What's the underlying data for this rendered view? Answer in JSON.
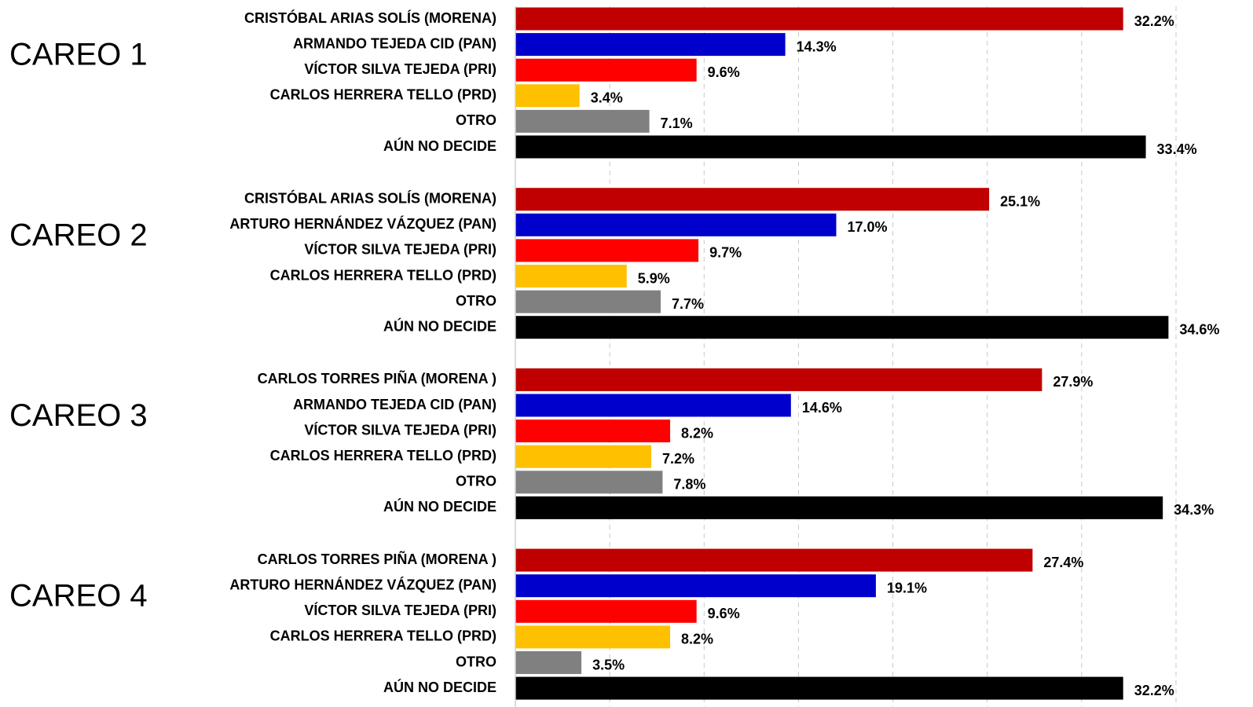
{
  "chart_data": {
    "type": "bar",
    "colors": [
      "#c00000",
      "#0000cc",
      "#ff0000",
      "#ffc000",
      "#808080",
      "#000000"
    ],
    "xlim": [
      0,
      35
    ],
    "xticks": [
      5,
      10,
      15,
      20,
      25,
      30,
      35
    ],
    "grid": true,
    "groups": [
      {
        "name": "CAREO 1",
        "categories": [
          "CRISTÓBAL ARIAS SOLÍS (MORENA)",
          "ARMANDO TEJEDA CID (PAN)",
          "VÍCTOR SILVA TEJEDA (PRI)",
          "CARLOS HERRERA TELLO (PRD)",
          "OTRO",
          "AÚN NO DECIDE"
        ],
        "values": [
          32.2,
          14.3,
          9.6,
          3.4,
          7.1,
          33.4
        ],
        "value_labels": [
          "32.2%",
          "14.3%",
          "9.6%",
          "3.4%",
          "7.1%",
          "33.4%"
        ]
      },
      {
        "name": "CAREO 2",
        "categories": [
          "CRISTÓBAL ARIAS SOLÍS (MORENA)",
          "ARTURO HERNÁNDEZ VÁZQUEZ (PAN)",
          "VÍCTOR SILVA TEJEDA (PRI)",
          "CARLOS HERRERA TELLO (PRD)",
          "OTRO",
          "AÚN NO DECIDE"
        ],
        "values": [
          25.1,
          17.0,
          9.7,
          5.9,
          7.7,
          34.6
        ],
        "value_labels": [
          "25.1%",
          "17.0%",
          "9.7%",
          "5.9%",
          "7.7%",
          "34.6%"
        ]
      },
      {
        "name": "CAREO 3",
        "categories": [
          "CARLOS TORRES PIÑA (MORENA )",
          "ARMANDO TEJEDA CID (PAN)",
          "VÍCTOR SILVA TEJEDA (PRI)",
          "CARLOS HERRERA TELLO (PRD)",
          "OTRO",
          "AÚN NO DECIDE"
        ],
        "values": [
          27.9,
          14.6,
          8.2,
          7.2,
          7.8,
          34.3
        ],
        "value_labels": [
          "27.9%",
          "14.6%",
          "8.2%",
          "7.2%",
          "7.8%",
          "34.3%"
        ]
      },
      {
        "name": "CAREO 4",
        "categories": [
          "CARLOS TORRES PIÑA (MORENA )",
          "ARTURO HERNÁNDEZ VÁZQUEZ (PAN)",
          "VÍCTOR SILVA TEJEDA (PRI)",
          "CARLOS HERRERA TELLO (PRD)",
          "OTRO",
          "AÚN NO DECIDE"
        ],
        "values": [
          27.4,
          19.1,
          9.6,
          8.2,
          3.5,
          32.2
        ],
        "value_labels": [
          "27.4%",
          "19.1%",
          "9.6%",
          "8.2%",
          "3.5%",
          "32.2%"
        ]
      }
    ]
  }
}
